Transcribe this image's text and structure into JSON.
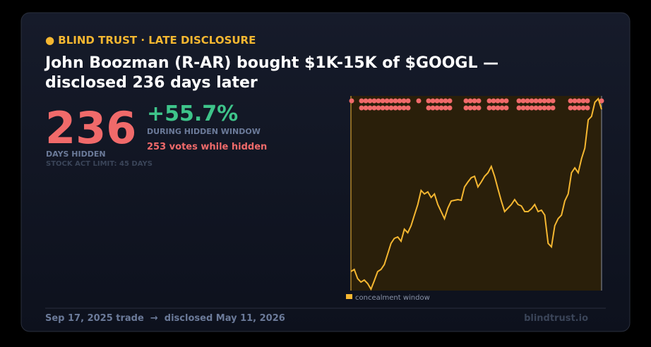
{
  "header": {
    "tag": "● BLIND TRUST · LATE DISCLOSURE",
    "title_line1": "John Boozman (R-AR) bought $1K-15K of $GOOGL —",
    "title_line2": "disclosed 236 days later"
  },
  "stats": {
    "days": "236",
    "days_label": "DAYS HIDDEN",
    "limit": "STOCK ACT LIMIT: 45 DAYS",
    "change": "+55.7%",
    "change_label": "DURING HIDDEN WINDOW",
    "votes": "253 votes while hidden"
  },
  "chart_data": {
    "type": "line",
    "color": "#f5b731",
    "legend": "concealment window",
    "ylim": [
      0,
      276
    ],
    "values": [
      27,
      30,
      17,
      12,
      15,
      10,
      2,
      14,
      27,
      30,
      37,
      52,
      67,
      74,
      76,
      70,
      87,
      82,
      92,
      107,
      122,
      142,
      137,
      140,
      132,
      137,
      122,
      112,
      102,
      117,
      127,
      128,
      129,
      128,
      147,
      154,
      160,
      162,
      147,
      154,
      162,
      167,
      176,
      162,
      144,
      127,
      112,
      117,
      122,
      129,
      122,
      120,
      112,
      112,
      116,
      122,
      112,
      114,
      107,
      67,
      62,
      92,
      102,
      107,
      127,
      137,
      167,
      174,
      167,
      187,
      202,
      242,
      247,
      267,
      272,
      257
    ]
  },
  "footer": {
    "dates": "Sep 17, 2025 trade  →  disclosed May 11, 2026",
    "site": "blindtrust.io"
  }
}
